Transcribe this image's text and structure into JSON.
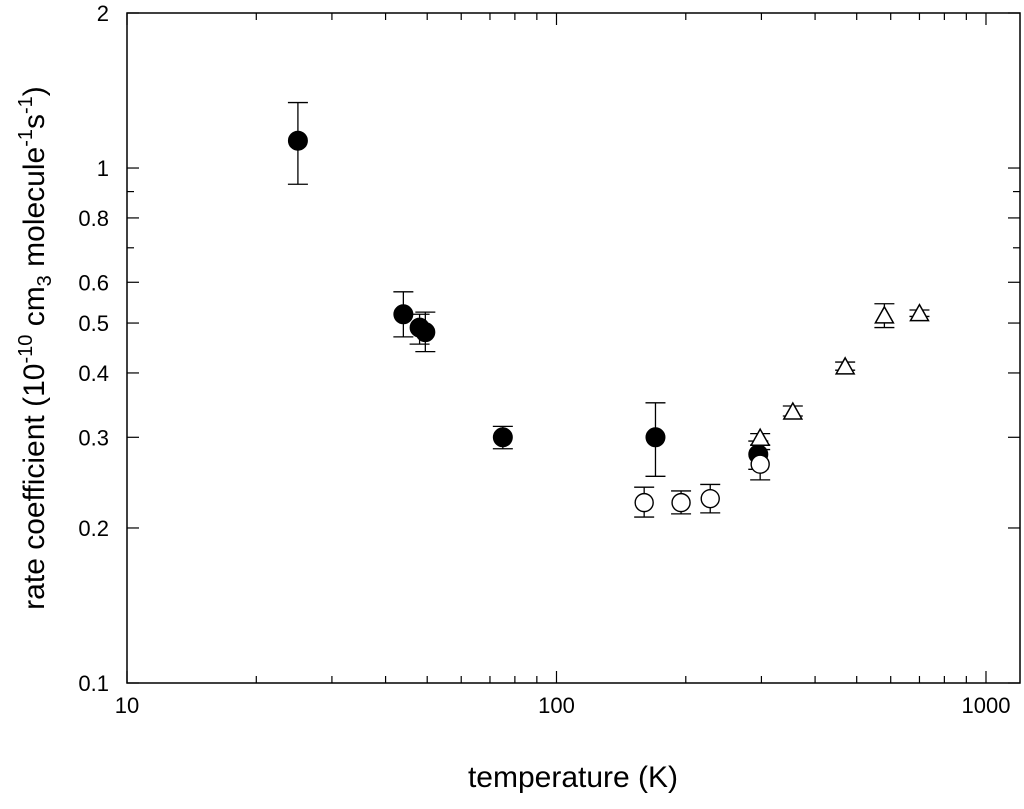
{
  "chart_data": {
    "type": "scatter",
    "xscale": "log",
    "yscale": "log",
    "xlim": [
      10,
      1200
    ],
    "ylim": [
      0.1,
      2
    ],
    "xlabel": "temperature (K)",
    "ylabel": {
      "prefix": "rate coefficient (10",
      "exp1": "-10",
      "mid": " cm",
      "sub": "3",
      "mid2": " molecule",
      "exp2": "-1",
      "mid3": "s",
      "exp3": "-1",
      "suffix": ")"
    },
    "x_major_ticks": [
      {
        "value": 10,
        "label": "10"
      },
      {
        "value": 100,
        "label": "100"
      },
      {
        "value": 1000,
        "label": "1000"
      }
    ],
    "x_minor_ticks": [
      20,
      30,
      40,
      50,
      60,
      70,
      80,
      90,
      200,
      300,
      400,
      500,
      600,
      700,
      800,
      900
    ],
    "y_ticks": [
      {
        "value": 0.1,
        "label": "0.1"
      },
      {
        "value": 0.2,
        "label": "0.2"
      },
      {
        "value": 0.3,
        "label": "0.3"
      },
      {
        "value": 0.4,
        "label": "0.4"
      },
      {
        "value": 0.5,
        "label": "0.5"
      },
      {
        "value": 0.6,
        "label": "0.6"
      },
      {
        "value": 0.8,
        "label": "0.8"
      },
      {
        "value": 1,
        "label": "1"
      },
      {
        "value": 2,
        "label": "2"
      }
    ],
    "y_minor_ticks": [
      0.7,
      0.9
    ],
    "grid": false,
    "series": [
      {
        "marker": "filled-circle",
        "color": "#000000",
        "points": [
          {
            "x": 25,
            "y": 1.13,
            "ylo": 0.93,
            "yhi": 1.34
          },
          {
            "x": 44,
            "y": 0.52,
            "ylo": 0.47,
            "yhi": 0.575
          },
          {
            "x": 48,
            "y": 0.49,
            "ylo": 0.455,
            "yhi": 0.52
          },
          {
            "x": 49.5,
            "y": 0.48,
            "ylo": 0.44,
            "yhi": 0.525
          },
          {
            "x": 75,
            "y": 0.3,
            "ylo": 0.285,
            "yhi": 0.315
          },
          {
            "x": 170,
            "y": 0.3,
            "ylo": 0.252,
            "yhi": 0.35
          },
          {
            "x": 295,
            "y": 0.278,
            "ylo": 0.26,
            "yhi": 0.295
          }
        ]
      },
      {
        "marker": "open-circle",
        "color": "#000000",
        "points": [
          {
            "x": 160,
            "y": 0.224,
            "ylo": 0.21,
            "yhi": 0.24
          },
          {
            "x": 195,
            "y": 0.224,
            "ylo": 0.213,
            "yhi": 0.236
          },
          {
            "x": 228,
            "y": 0.228,
            "ylo": 0.214,
            "yhi": 0.243
          },
          {
            "x": 298,
            "y": 0.266,
            "ylo": 0.248,
            "yhi": 0.284
          }
        ]
      },
      {
        "marker": "open-triangle",
        "color": "#000000",
        "points": [
          {
            "x": 298,
            "y": 0.298,
            "ylo": 0.29,
            "yhi": 0.305
          },
          {
            "x": 355,
            "y": 0.335,
            "ylo": 0.33,
            "yhi": 0.345
          },
          {
            "x": 470,
            "y": 0.41,
            "ylo": 0.405,
            "yhi": 0.42
          },
          {
            "x": 580,
            "y": 0.515,
            "ylo": 0.49,
            "yhi": 0.545
          },
          {
            "x": 700,
            "y": 0.52,
            "ylo": 0.515,
            "yhi": 0.53
          }
        ]
      }
    ]
  }
}
